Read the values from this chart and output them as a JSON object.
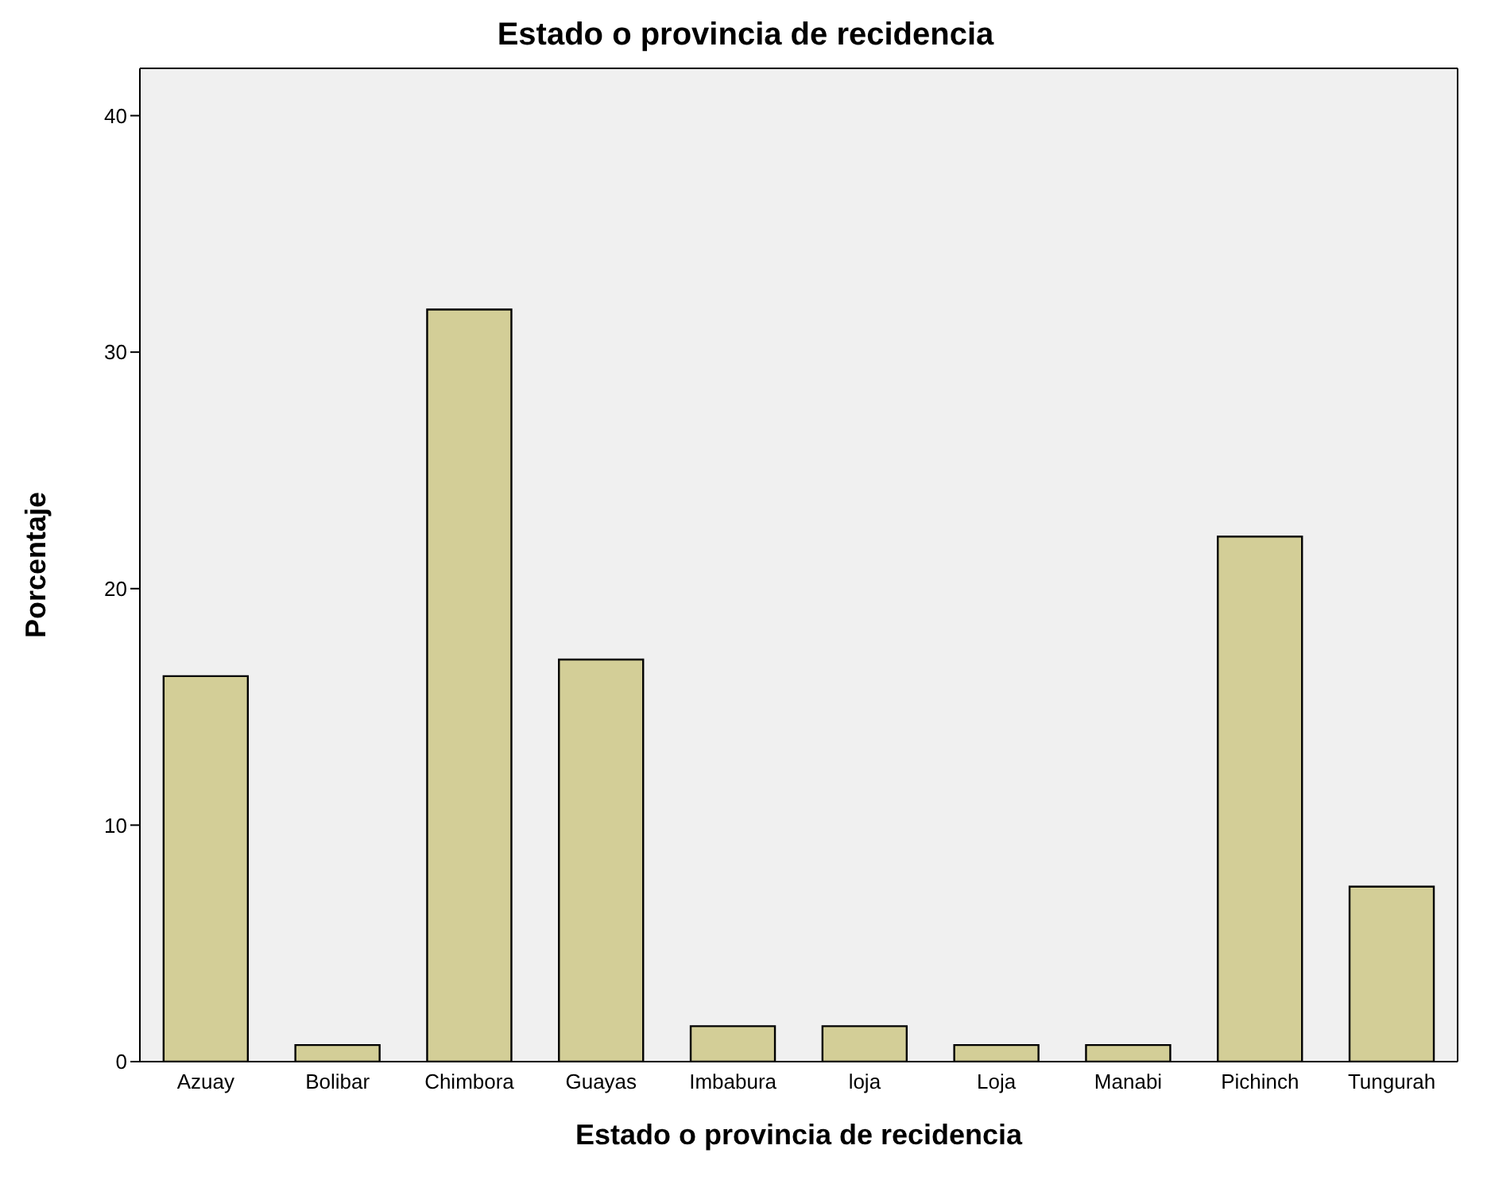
{
  "chart_data": {
    "type": "bar",
    "title": "Estado o provincia de recidencia",
    "xlabel": "Estado o provincia de recidencia",
    "ylabel": "Porcentaje",
    "categories": [
      "Azuay",
      "Bolibar",
      "Chimbora",
      "Guayas",
      "Imbabura",
      "loja",
      "Loja",
      "Manabi",
      "Pichinch",
      "Tungurah"
    ],
    "values": [
      16.3,
      0.7,
      31.8,
      17.0,
      1.5,
      1.5,
      0.7,
      0.7,
      22.2,
      7.4
    ],
    "color": "#d3ce97",
    "ylim": [
      0,
      42
    ],
    "yticks": [
      0,
      10,
      20,
      30,
      40
    ],
    "grid": false
  }
}
